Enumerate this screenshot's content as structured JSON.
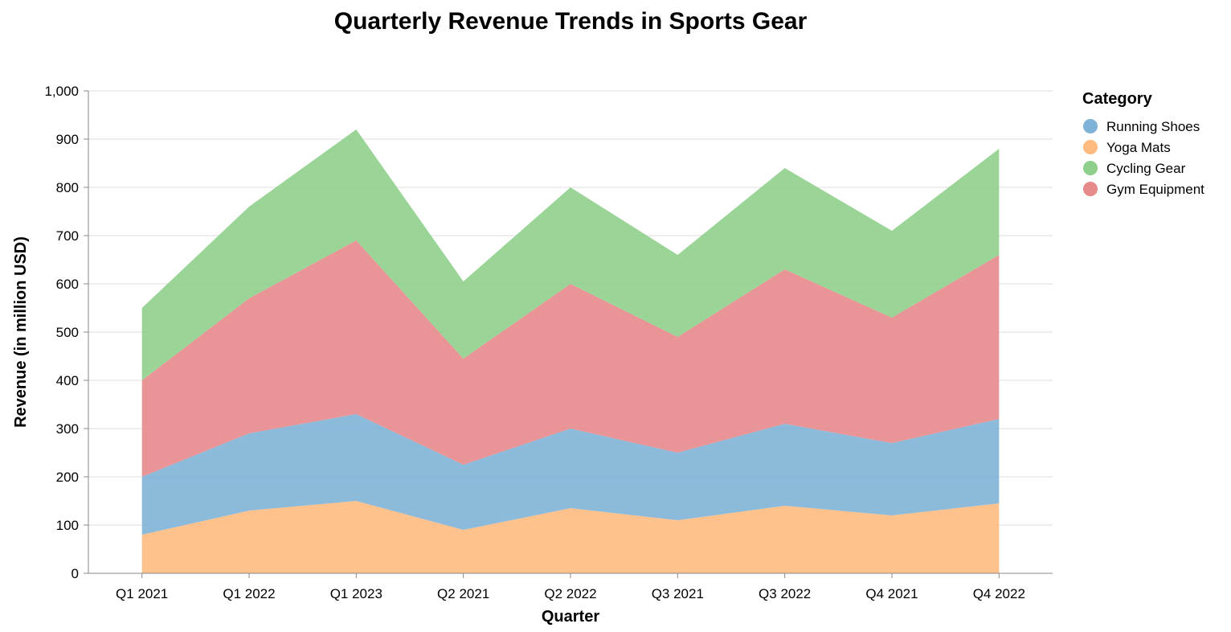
{
  "chart_data": {
    "type": "area",
    "stacked": true,
    "title": "Quarterly Revenue Trends in Sports Gear",
    "xlabel": "Quarter",
    "ylabel": "Revenue (in million USD)",
    "ylim": [
      0,
      1000
    ],
    "yticks": [
      0,
      100,
      200,
      300,
      400,
      500,
      600,
      700,
      800,
      900,
      1000
    ],
    "ytick_labels": [
      "0",
      "100",
      "200",
      "300",
      "400",
      "500",
      "600",
      "700",
      "800",
      "900",
      "1,000"
    ],
    "grid": true,
    "legend_title": "Category",
    "legend_position": "top-right",
    "categories": [
      "Q1 2021",
      "Q1 2022",
      "Q1 2023",
      "Q2 2021",
      "Q2 2022",
      "Q3 2021",
      "Q3 2022",
      "Q4 2021",
      "Q4 2022"
    ],
    "series": [
      {
        "name": "Running Shoes",
        "color": "#7fb2d7",
        "values": [
          120,
          160,
          180,
          135,
          165,
          140,
          170,
          150,
          175
        ]
      },
      {
        "name": "Yoga Mats",
        "color": "#ffbb7f",
        "values": [
          80,
          130,
          150,
          90,
          135,
          110,
          140,
          120,
          145
        ]
      },
      {
        "name": "Cycling Gear",
        "color": "#8fcf8c",
        "values": [
          150,
          190,
          230,
          160,
          200,
          170,
          210,
          180,
          220
        ]
      },
      {
        "name": "Gym Equipment",
        "color": "#e78a8c",
        "values": [
          200,
          280,
          360,
          220,
          300,
          240,
          320,
          260,
          340
        ]
      }
    ],
    "stack_order_bottom_to_top": [
      "Yoga Mats",
      "Running Shoes",
      "Gym Equipment",
      "Cycling Gear"
    ]
  }
}
